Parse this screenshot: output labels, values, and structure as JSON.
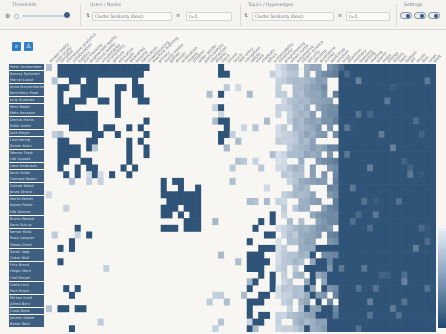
{
  "toolbar": {
    "thresholds_title": "Thresholds",
    "users_title": "Users / Nodes",
    "users_sort": "Cluster Similarity (Desc)",
    "users_n": "n=5",
    "topics_title": "Topics / Hyperedges",
    "topics_sort": "Cluster Similarity (Desc)",
    "topics_n": "n=5",
    "settings_title": "Settings"
  },
  "buttons": {
    "zoom_icon": "search-icon",
    "zoom": "⌕",
    "person_icon": "person-icon",
    "person": "♙"
  },
  "colors": {
    "dark_cell": "#2f5478",
    "row_label_bg": "#3e5f7f",
    "background": "#f7f6f2",
    "accent": "#2f7ec2"
  },
  "row_labels": [
    "Peter Gronemeier",
    "Barney Nylander",
    "Marcel Loose",
    "Anna Kuchenbecker",
    "Karl-Heinz Pape",
    "Judy Andrews",
    "Mimi Rodel",
    "Mats Hansson",
    "Dennis Hohls",
    "Edith Smith",
    "Julia Meyer",
    "Lisa Hering",
    "Rainer Kuhn",
    "Werner Frost",
    "Ute Lippold",
    "Lena Harbusch",
    "Karin Koller",
    "Gerhard Rosen",
    "Zainab Walsh",
    "Jonas Strack",
    "Marta Kerber",
    "Agnes Reiter",
    "Nils Danner",
    "Bruno Wessel",
    "Ilona Schulz",
    "Kemal Yildiz",
    "Rosa Langner",
    "Tobias Ebert",
    "Sarah Vogt",
    "Oskar Wulf",
    "Fritz Brand",
    "Helga Stern",
    "Olaf Berger",
    "Greta Lind",
    "Paul Hoyer",
    "Miriam Kraft",
    "Alfred Born",
    "Carla Dietz",
    "Johann Seidel",
    "Beate Roth"
  ],
  "col_labels": [
    "mixed reality",
    "user study",
    "tangible",
    "immersive analytics",
    "collaboration",
    "haptics",
    "eye tracking",
    "augmented reality",
    "virtual reality",
    "visualization",
    "accessibility",
    "gesture",
    "education",
    "health",
    "wearables",
    "sensing",
    "fabrication",
    "crowdsourcing",
    "machine learning",
    "privacy",
    "social media",
    "games",
    "design",
    "evaluation",
    "mobile",
    "children",
    "older adults",
    "participatory",
    "interaction",
    "display",
    "input",
    "sound",
    "touch",
    "text entry",
    "navigation",
    "robots",
    "voice",
    "chatbots",
    "ethics",
    "sustainability",
    "creativity",
    "programming",
    "smart home",
    "automotive",
    "citizen science",
    "security",
    "ubicomp",
    "qualitative",
    "survey",
    "workshop",
    "emotion",
    "trust",
    "attention",
    "memory",
    "learning",
    "writing",
    "reading",
    "search",
    "maps",
    "energy",
    "fitness",
    "food",
    "fashion",
    "art",
    "music",
    "film",
    "news",
    "work"
  ],
  "matrix": {
    "rows": 40,
    "cols": 68
  }
}
